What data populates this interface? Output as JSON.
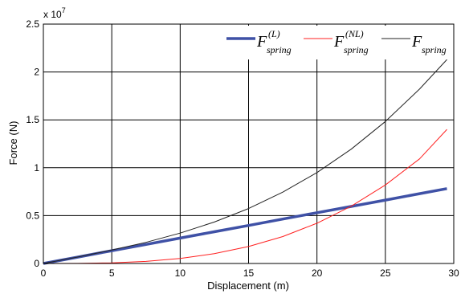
{
  "chart_data": {
    "type": "line",
    "xlabel": "Displacement (m)",
    "ylabel": "Force (N)",
    "y_multiplier_label": "x 10",
    "y_multiplier_exponent": "7",
    "xlim": [
      0,
      30
    ],
    "ylim": [
      0,
      2.5
    ],
    "xticks": [
      "0",
      "5",
      "10",
      "15",
      "20",
      "25",
      "30"
    ],
    "yticks": [
      "0",
      "0.5",
      "1",
      "1.5",
      "2",
      "2.5"
    ],
    "grid": true,
    "legend_placement": "top-right",
    "x": [
      0,
      2.5,
      5,
      7.5,
      10,
      12.5,
      15,
      17.5,
      20,
      22.5,
      25,
      27.5,
      29.5
    ],
    "series": [
      {
        "name": "F",
        "name_superscript": "(L)",
        "name_subscript": "spring",
        "color": "#3f51a6",
        "values": [
          0,
          0.066,
          0.133,
          0.199,
          0.265,
          0.331,
          0.397,
          0.464,
          0.53,
          0.596,
          0.662,
          0.729,
          0.782
        ]
      },
      {
        "name": "F",
        "name_superscript": "(NL)",
        "name_subscript": "spring",
        "color": "#ff2020",
        "values": [
          0,
          0.001,
          0.007,
          0.022,
          0.052,
          0.102,
          0.177,
          0.281,
          0.42,
          0.598,
          0.82,
          1.092,
          1.4
        ]
      },
      {
        "name": "F",
        "name_superscript": "",
        "name_subscript": "spring",
        "color": "#222222",
        "values": [
          0,
          0.067,
          0.14,
          0.221,
          0.317,
          0.433,
          0.574,
          0.745,
          0.95,
          1.194,
          1.482,
          1.821,
          2.13
        ]
      }
    ]
  }
}
